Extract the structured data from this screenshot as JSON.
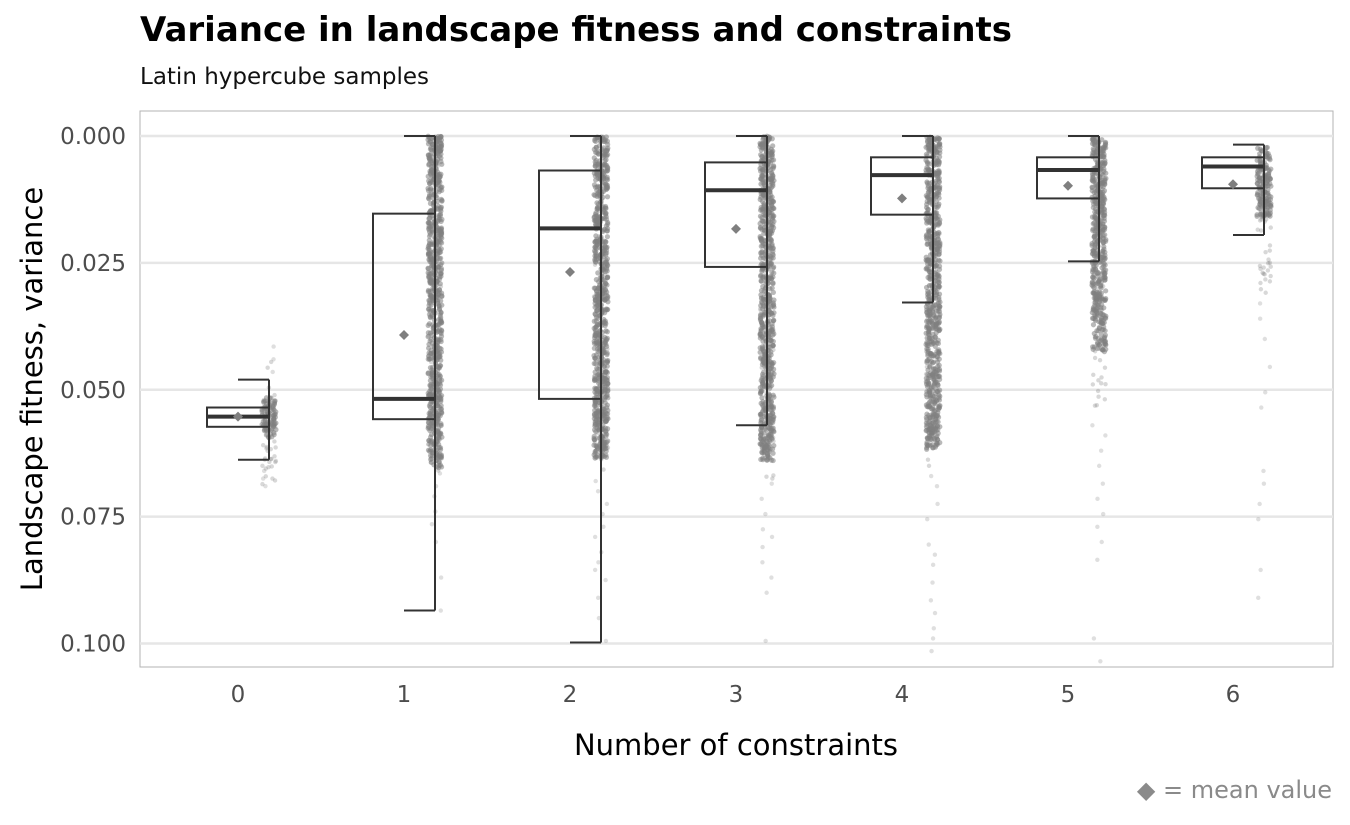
{
  "chart_data": {
    "type": "boxplot",
    "title": "Variance in landscape fitness and constraints",
    "subtitle": "Latin hypercube samples",
    "xlabel": "Number of constraints",
    "ylabel": "Landscape fitness, variance",
    "caption": "◆ = mean value",
    "y_reversed": true,
    "ylim": [
      0.0,
      0.105
    ],
    "yticks": [
      {
        "value": 0.0,
        "label": "0.000"
      },
      {
        "value": 0.025,
        "label": "0.025"
      },
      {
        "value": 0.05,
        "label": "0.050"
      },
      {
        "value": 0.075,
        "label": "0.075"
      },
      {
        "value": 0.1,
        "label": "0.100"
      }
    ],
    "categories": [
      "0",
      "1",
      "2",
      "3",
      "4",
      "5",
      "6"
    ],
    "grid": "horizontal",
    "boxes": [
      {
        "category": "0",
        "whisker_low": 0.048,
        "q1": 0.0535,
        "median": 0.0553,
        "q3": 0.0573,
        "whisker_high": 0.0638,
        "mean": 0.0553
      },
      {
        "category": "1",
        "whisker_low": 0.0,
        "q1": 0.0153,
        "median": 0.0518,
        "q3": 0.0558,
        "whisker_high": 0.0935,
        "mean": 0.0392
      },
      {
        "category": "2",
        "whisker_low": 0.0,
        "q1": 0.0068,
        "median": 0.0182,
        "q3": 0.0518,
        "whisker_high": 0.0998,
        "mean": 0.0268
      },
      {
        "category": "3",
        "whisker_low": 0.0,
        "q1": 0.0052,
        "median": 0.0107,
        "q3": 0.0258,
        "whisker_high": 0.057,
        "mean": 0.0183
      },
      {
        "category": "4",
        "whisker_low": 0.0,
        "q1": 0.0042,
        "median": 0.0077,
        "q3": 0.0155,
        "whisker_high": 0.0328,
        "mean": 0.0123
      },
      {
        "category": "5",
        "whisker_low": 0.0,
        "q1": 0.0042,
        "median": 0.0067,
        "q3": 0.0123,
        "whisker_high": 0.0247,
        "mean": 0.0098
      },
      {
        "category": "6",
        "whisker_low": 0.0017,
        "q1": 0.0042,
        "median": 0.006,
        "q3": 0.0103,
        "whisker_high": 0.0195,
        "mean": 0.0095
      }
    ],
    "sample_points": {
      "color": "#7f7f7f",
      "groups": [
        {
          "category": "0",
          "dense_range": [
            0.0515,
            0.0595
          ],
          "spread_range": [
            0.0415,
            0.069
          ],
          "sparse": [
            0.0415,
            0.044,
            0.0465,
            0.0635,
            0.066,
            0.0675,
            0.069
          ]
        },
        {
          "category": "1",
          "dense_range": [
            0.0,
            0.0655
          ],
          "spread_range": [
            0.0,
            0.0665
          ],
          "sparse": [
            0.0665,
            0.069,
            0.071,
            0.074,
            0.0765,
            0.08,
            0.087,
            0.0935
          ]
        },
        {
          "category": "2",
          "dense_range": [
            0.0,
            0.0635
          ],
          "spread_range": [
            0.0,
            0.066
          ],
          "sparse": [
            0.068,
            0.07,
            0.0725,
            0.0745,
            0.077,
            0.079,
            0.082,
            0.084,
            0.0855,
            0.0875,
            0.091,
            0.095,
            0.0995
          ]
        },
        {
          "category": "3",
          "dense_range": [
            0.0,
            0.064
          ],
          "spread_range": [
            0.0,
            0.068
          ],
          "sparse": [
            0.0685,
            0.0715,
            0.0745,
            0.0775,
            0.079,
            0.081,
            0.084,
            0.087,
            0.09,
            0.0995
          ]
        },
        {
          "category": "4",
          "dense_range": [
            0.0,
            0.062
          ],
          "spread_range": [
            0.0,
            0.0655
          ],
          "sparse": [
            0.067,
            0.069,
            0.0725,
            0.0755,
            0.0805,
            0.0825,
            0.0845,
            0.088,
            0.0915,
            0.094,
            0.097,
            0.099,
            0.1015
          ]
        },
        {
          "category": "5",
          "dense_range": [
            0.0,
            0.0425
          ],
          "spread_range": [
            0.0,
            0.055
          ],
          "sparse": [
            0.057,
            0.059,
            0.062,
            0.065,
            0.0685,
            0.0715,
            0.0745,
            0.077,
            0.08,
            0.0835,
            0.099,
            0.1035
          ]
        },
        {
          "category": "6",
          "dense_range": [
            0.002,
            0.016
          ],
          "spread_range": [
            0.002,
            0.031
          ],
          "sparse": [
            0.033,
            0.036,
            0.04,
            0.0455,
            0.0505,
            0.0535,
            0.066,
            0.0685,
            0.0725,
            0.0755,
            0.0855,
            0.091
          ]
        }
      ]
    },
    "colors": {
      "box_line": "#333333",
      "median_line": "#333333",
      "mean_marker": "#7f7f7f",
      "points": "#7f7f7f",
      "grid": "#e6e6e6",
      "panel_border": "#b3b3b3",
      "tick_text": "#4d4d4d",
      "axis_title": "#000000"
    }
  }
}
